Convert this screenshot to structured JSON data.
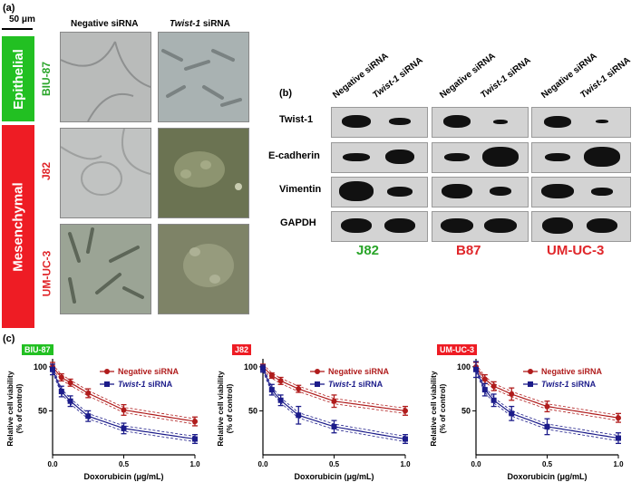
{
  "panels": {
    "a": "(a)",
    "b": "(b)",
    "c": "(c)"
  },
  "scale_bar": "50 μm",
  "panel_a": {
    "columns": [
      {
        "prefix": "",
        "text": "Negative siRNA"
      },
      {
        "prefix": "Twist-1",
        "text": " siRNA"
      }
    ],
    "epithelial_label": "Epithelial",
    "mesenchymal_label": "Mesenchymal",
    "rows": [
      "BIU-87",
      "J82",
      "UM-UC-3"
    ],
    "colors": {
      "green": "#22c022",
      "red": "#ee1c24"
    }
  },
  "panel_b": {
    "lane_labels": [
      {
        "prefix": "",
        "text": "Negative siRNA"
      },
      {
        "prefix": "Twist-1",
        "text": " siRNA"
      },
      {
        "prefix": "",
        "text": "Negative siRNA"
      },
      {
        "prefix": "Twist-1",
        "text": " siRNA"
      },
      {
        "prefix": "",
        "text": "Negative siRNA"
      },
      {
        "prefix": "Twist-1",
        "text": " siRNA"
      }
    ],
    "proteins": [
      "Twist-1",
      "E-cadherin",
      "Vimentin",
      "GAPDH"
    ],
    "cell_lines": [
      {
        "name": "J82",
        "color": "green"
      },
      {
        "name": "B87",
        "color": "red"
      },
      {
        "name": "UM-UC-3",
        "color": "red"
      }
    ]
  },
  "chart_data": [
    {
      "type": "line",
      "title": "BIU-87",
      "xlabel": "Doxorubicin (μg/mL)",
      "ylabel": "Relative cell viability (% of control)",
      "ylabel_lines": [
        "Relative cell viability",
        "(% of control)"
      ],
      "xlim": [
        0,
        1
      ],
      "ylim": [
        0,
        105
      ],
      "x_ticks": [
        "0.0",
        "0.5",
        "1.0"
      ],
      "y_ticks": [
        "50",
        "100"
      ],
      "legend_position": "top-right",
      "series": [
        {
          "name": "Negative siRNA",
          "legend_prefix": "",
          "legend_text": "Negative  siRNA",
          "color": "#b01c1c",
          "x": [
            0,
            0.0625,
            0.125,
            0.25,
            0.5,
            1.0
          ],
          "y": [
            100,
            88,
            82,
            70,
            51,
            38
          ],
          "err": [
            5,
            4,
            4,
            5,
            6,
            5
          ]
        },
        {
          "name": "Twist-1 siRNA",
          "legend_prefix": "Twist-1",
          "legend_text": " siRNA",
          "color": "#1c1c8a",
          "x": [
            0,
            0.0625,
            0.125,
            0.25,
            0.5,
            1.0
          ],
          "y": [
            97,
            72,
            61,
            44,
            30,
            18
          ],
          "err": [
            6,
            6,
            6,
            6,
            6,
            5
          ]
        }
      ]
    },
    {
      "type": "line",
      "title": "J82",
      "xlabel": "Doxorubicin (μg/mL)",
      "ylabel": "Relative cell viability (% of control)",
      "ylabel_lines": [
        "Relative cell viability",
        "(% of control)"
      ],
      "xlim": [
        0,
        1
      ],
      "ylim": [
        0,
        105
      ],
      "x_ticks": [
        "0.0",
        "0.5",
        "1.0"
      ],
      "y_ticks": [
        "50",
        "100"
      ],
      "legend_position": "top-right",
      "series": [
        {
          "name": "Negative siRNA",
          "legend_prefix": "",
          "legend_text": "Negative  siRNA",
          "color": "#b01c1c",
          "x": [
            0,
            0.0625,
            0.125,
            0.25,
            0.5,
            1.0
          ],
          "y": [
            100,
            90,
            84,
            75,
            61,
            50
          ],
          "err": [
            3,
            3,
            4,
            4,
            7,
            5
          ]
        },
        {
          "name": "Twist-1 siRNA",
          "legend_prefix": "Twist-1",
          "legend_text": " siRNA",
          "color": "#1c1c8a",
          "x": [
            0,
            0.0625,
            0.125,
            0.25,
            0.5,
            1.0
          ],
          "y": [
            98,
            74,
            62,
            45,
            32,
            18
          ],
          "err": [
            4,
            6,
            6,
            10,
            7,
            5
          ]
        }
      ]
    },
    {
      "type": "line",
      "title": "UM-UC-3",
      "xlabel": "Doxorubicin (μg/mL)",
      "ylabel": "Relative cell viability (% of control)",
      "ylabel_lines": [
        "Relative cell viability",
        "(% of control)"
      ],
      "xlim": [
        0,
        1
      ],
      "ylim": [
        0,
        105
      ],
      "x_ticks": [
        "0.0",
        "0.5",
        "1.0"
      ],
      "y_ticks": [
        "50",
        "100"
      ],
      "legend_position": "top-right",
      "series": [
        {
          "name": "Negative siRNA",
          "legend_prefix": "",
          "legend_text": "Negative  siRNA",
          "color": "#b01c1c",
          "x": [
            0,
            0.0625,
            0.125,
            0.25,
            0.5,
            1.0
          ],
          "y": [
            100,
            86,
            78,
            69,
            55,
            42
          ],
          "err": [
            5,
            5,
            5,
            7,
            6,
            5
          ]
        },
        {
          "name": "Twist-1 siRNA",
          "legend_prefix": "Twist-1",
          "legend_text": " siRNA",
          "color": "#1c1c8a",
          "x": [
            0,
            0.0625,
            0.125,
            0.25,
            0.5,
            1.0
          ],
          "y": [
            97,
            74,
            62,
            47,
            32,
            19
          ],
          "err": [
            9,
            7,
            7,
            8,
            9,
            6
          ]
        }
      ]
    }
  ]
}
